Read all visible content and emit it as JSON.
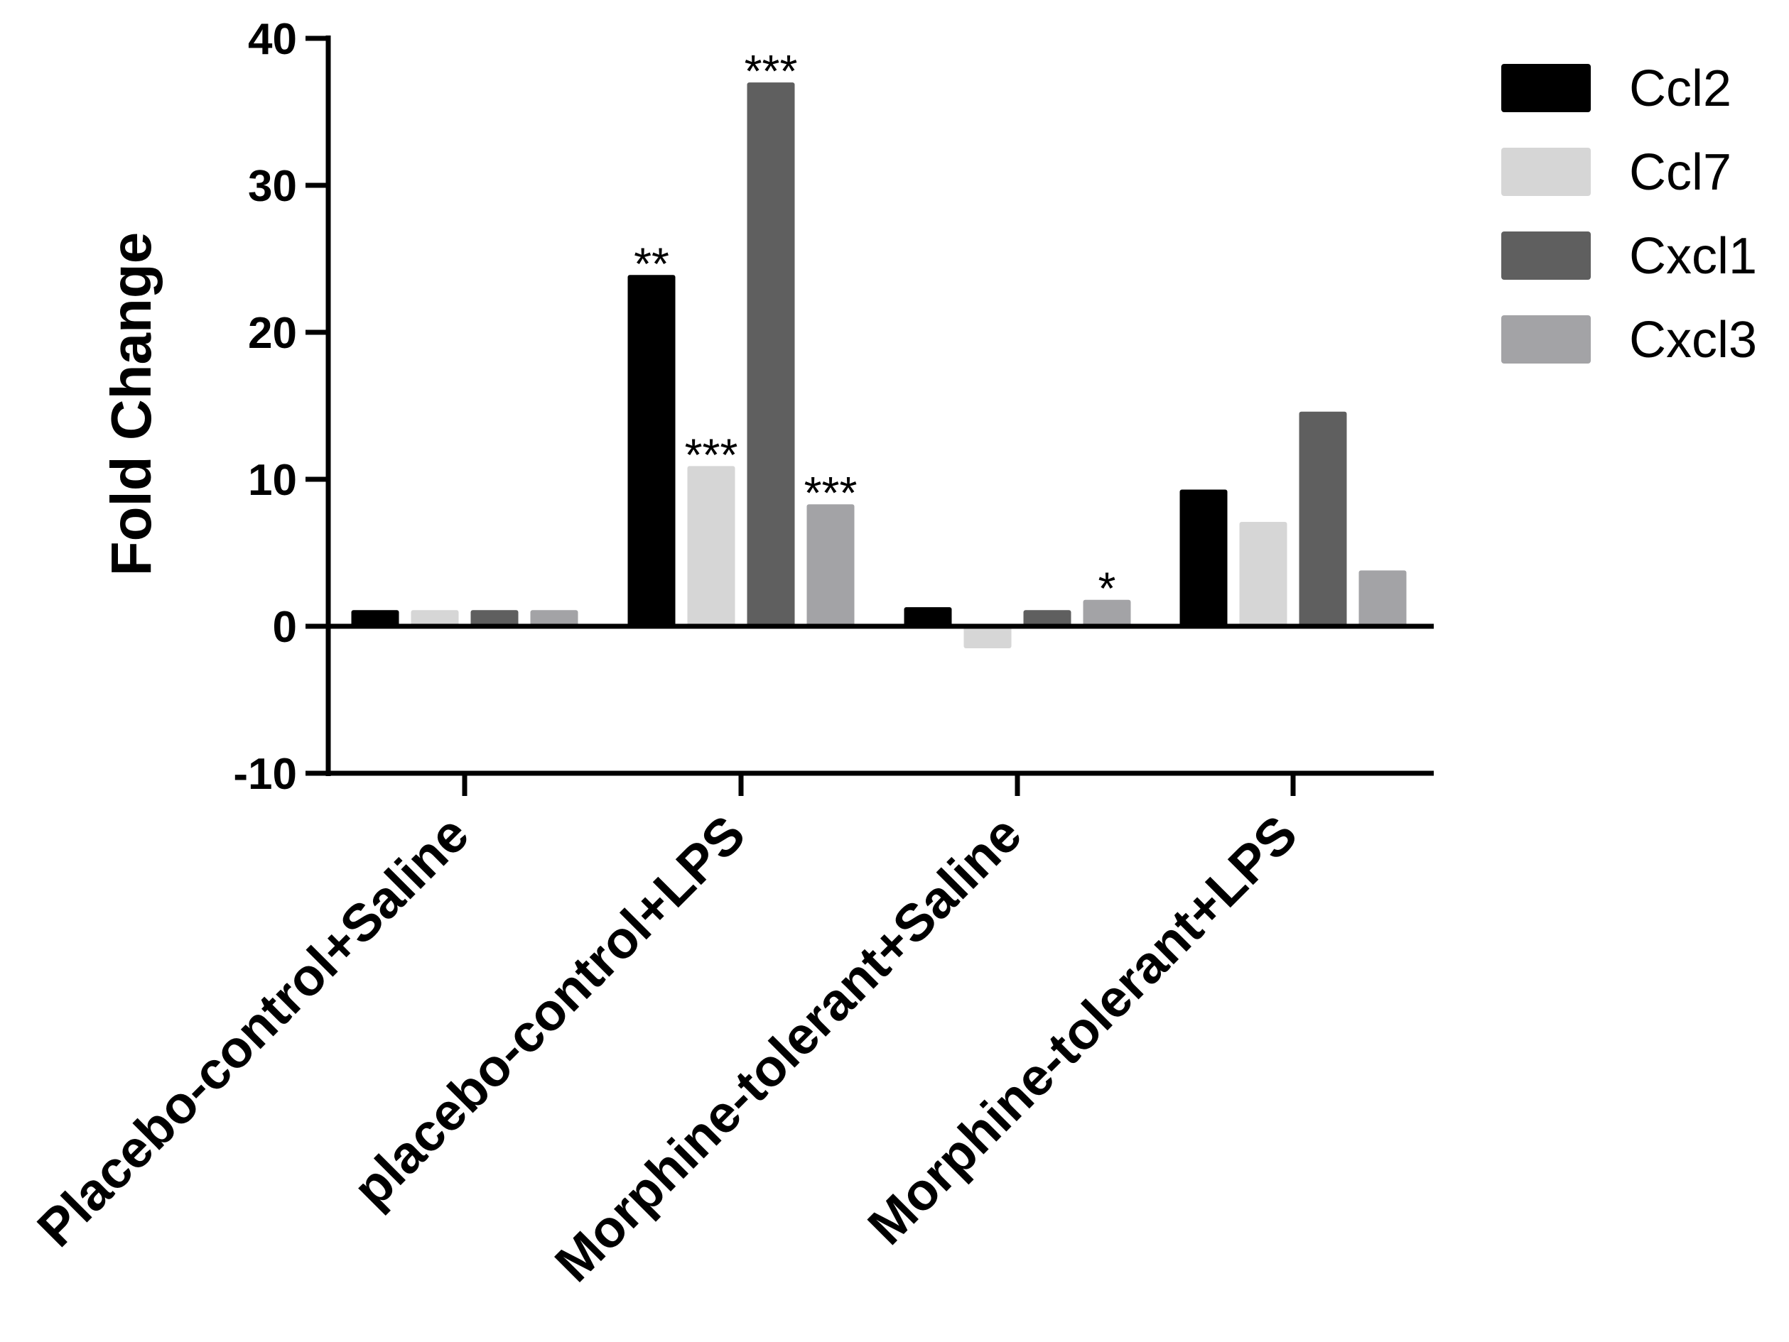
{
  "chart_data": {
    "type": "bar",
    "ylabel": "Fold  Change",
    "ylim": [
      -10,
      40
    ],
    "yticks": [
      -10,
      0,
      10,
      20,
      30,
      40
    ],
    "categories": [
      "Placebo-control+Saline",
      "placebo-control+LPS",
      "Morphine-tolerant+Saline",
      "Morphine-tolerant+LPS"
    ],
    "series": [
      {
        "name": "Ccl2",
        "color": "#000000",
        "values": [
          1.1,
          23.9,
          1.3,
          9.3
        ],
        "annotations": [
          "",
          "**",
          "",
          ""
        ]
      },
      {
        "name": "Ccl7",
        "color": "#d6d6d6",
        "values": [
          1.1,
          10.9,
          -1.5,
          7.1
        ],
        "annotations": [
          "",
          "***",
          "",
          ""
        ]
      },
      {
        "name": "Cxcl1",
        "color": "#5f5f5f",
        "values": [
          1.1,
          37.0,
          1.1,
          14.6
        ],
        "annotations": [
          "",
          "***",
          "",
          ""
        ]
      },
      {
        "name": "Cxcl3",
        "color": "#a3a3a6",
        "values": [
          1.1,
          8.3,
          1.8,
          3.8
        ],
        "annotations": [
          "",
          "***",
          "*",
          ""
        ]
      }
    ],
    "legend_position": "top-right",
    "grid": false
  }
}
